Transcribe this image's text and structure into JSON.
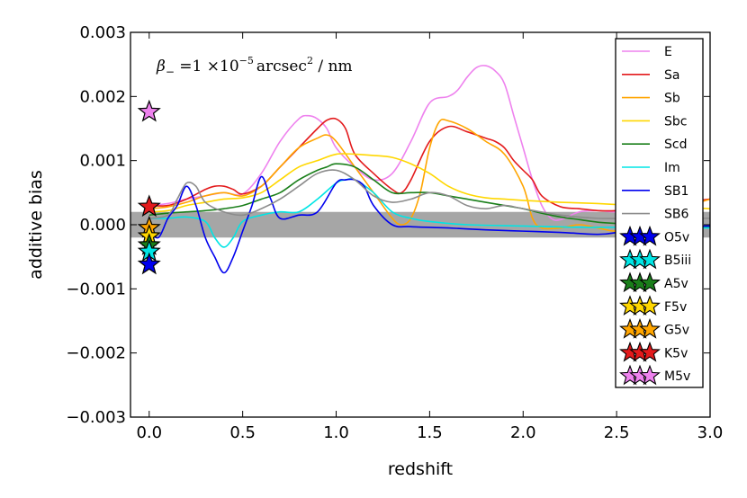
{
  "chart_data": {
    "type": "line",
    "xlabel": "redshift",
    "ylabel": "additive bias",
    "xlim": [
      -0.1,
      3.0
    ],
    "ylim": [
      -0.003,
      0.003
    ],
    "xticks": [
      0.0,
      0.5,
      1.0,
      1.5,
      2.0,
      2.5,
      3.0
    ],
    "xtick_labels": [
      "0.0",
      "0.5",
      "1.0",
      "1.5",
      "2.0",
      "2.5",
      "3.0"
    ],
    "yticks": [
      -0.003,
      -0.002,
      -0.001,
      0.0,
      0.001,
      0.002,
      0.003
    ],
    "ytick_labels": [
      "−0.003",
      "−0.002",
      "−0.001",
      "0.000",
      "0.001",
      "0.002",
      "0.003"
    ],
    "annotation": {
      "beta": "β",
      "sub": "−",
      "eq": " =1 ×10",
      "exp": "−5",
      "unit": "arcsec",
      "unit_exp": "2",
      "per": " / nm"
    },
    "tolerance_band": [
      -0.0002,
      0.0002
    ],
    "band_color": "#a6a6a6",
    "legend_position": "right",
    "series": [
      {
        "name": "E",
        "color": "#ee82ee",
        "points": [
          [
            0.0,
            0.0003
          ],
          [
            0.1,
            0.00033
          ],
          [
            0.2,
            0.0004
          ],
          [
            0.3,
            0.00045
          ],
          [
            0.4,
            0.0005
          ],
          [
            0.5,
            0.00048
          ],
          [
            0.6,
            0.0008
          ],
          [
            0.7,
            0.0013
          ],
          [
            0.8,
            0.00165
          ],
          [
            0.85,
            0.0017
          ],
          [
            0.9,
            0.00165
          ],
          [
            0.95,
            0.0015
          ],
          [
            1.0,
            0.0012
          ],
          [
            1.1,
            0.0009
          ],
          [
            1.2,
            0.0007
          ],
          [
            1.3,
            0.0008
          ],
          [
            1.4,
            0.0013
          ],
          [
            1.5,
            0.0019
          ],
          [
            1.6,
            0.002
          ],
          [
            1.65,
            0.0021
          ],
          [
            1.7,
            0.0023
          ],
          [
            1.75,
            0.00245
          ],
          [
            1.8,
            0.00248
          ],
          [
            1.85,
            0.0024
          ],
          [
            1.9,
            0.0022
          ],
          [
            1.95,
            0.0017
          ],
          [
            2.0,
            0.0012
          ],
          [
            2.05,
            0.0007
          ],
          [
            2.1,
            0.0003
          ],
          [
            2.15,
            0.0001
          ],
          [
            2.2,
            8e-05
          ],
          [
            2.3,
            0.0002
          ],
          [
            2.4,
            0.00022
          ],
          [
            2.5,
            0.0002
          ],
          [
            2.6,
            0.00025
          ],
          [
            2.7,
            0.00028
          ],
          [
            2.8,
            0.0002
          ],
          [
            2.9,
            0.00035
          ],
          [
            3.0,
            0.0004
          ]
        ]
      },
      {
        "name": "Sa",
        "color": "#e31a1c",
        "points": [
          [
            0.0,
            0.0003
          ],
          [
            0.1,
            0.0003
          ],
          [
            0.2,
            0.0004
          ],
          [
            0.3,
            0.00055
          ],
          [
            0.35,
            0.0006
          ],
          [
            0.4,
            0.0006
          ],
          [
            0.45,
            0.00055
          ],
          [
            0.5,
            0.00048
          ],
          [
            0.6,
            0.0006
          ],
          [
            0.7,
            0.0009
          ],
          [
            0.8,
            0.0012
          ],
          [
            0.9,
            0.0015
          ],
          [
            0.95,
            0.00163
          ],
          [
            1.0,
            0.00165
          ],
          [
            1.05,
            0.0015
          ],
          [
            1.1,
            0.0011
          ],
          [
            1.2,
            0.0008
          ],
          [
            1.3,
            0.00055
          ],
          [
            1.35,
            0.0005
          ],
          [
            1.4,
            0.0007
          ],
          [
            1.5,
            0.0013
          ],
          [
            1.6,
            0.00153
          ],
          [
            1.7,
            0.00145
          ],
          [
            1.8,
            0.00135
          ],
          [
            1.85,
            0.0013
          ],
          [
            1.9,
            0.0012
          ],
          [
            1.95,
            0.001
          ],
          [
            2.0,
            0.00085
          ],
          [
            2.05,
            0.0007
          ],
          [
            2.1,
            0.00045
          ],
          [
            2.2,
            0.00028
          ],
          [
            2.3,
            0.00025
          ],
          [
            2.4,
            0.00022
          ],
          [
            2.5,
            0.00022
          ],
          [
            2.6,
            0.00025
          ],
          [
            2.7,
            0.00028
          ],
          [
            2.8,
            0.0003
          ],
          [
            2.9,
            0.00036
          ],
          [
            3.0,
            0.0004
          ]
        ]
      },
      {
        "name": "Sb",
        "color": "#ffa500",
        "points": [
          [
            0.0,
            0.00025
          ],
          [
            0.1,
            0.00028
          ],
          [
            0.2,
            0.00035
          ],
          [
            0.3,
            0.00045
          ],
          [
            0.4,
            0.0005
          ],
          [
            0.5,
            0.00045
          ],
          [
            0.6,
            0.0006
          ],
          [
            0.7,
            0.0009
          ],
          [
            0.8,
            0.0012
          ],
          [
            0.9,
            0.00135
          ],
          [
            0.95,
            0.0014
          ],
          [
            1.0,
            0.0013
          ],
          [
            1.1,
            0.0009
          ],
          [
            1.2,
            0.0005
          ],
          [
            1.3,
            0.0001
          ],
          [
            1.35,
            0.0
          ],
          [
            1.4,
            0.0001
          ],
          [
            1.45,
            0.0005
          ],
          [
            1.5,
            0.0012
          ],
          [
            1.55,
            0.0016
          ],
          [
            1.6,
            0.00162
          ],
          [
            1.7,
            0.0015
          ],
          [
            1.8,
            0.0013
          ],
          [
            1.9,
            0.0011
          ],
          [
            2.0,
            0.0006
          ],
          [
            2.05,
            0.0001
          ],
          [
            2.1,
            -5e-05
          ],
          [
            2.2,
            -5e-05
          ],
          [
            2.3,
            0.0
          ],
          [
            2.4,
            -5e-05
          ],
          [
            2.5,
            -0.0001
          ],
          [
            2.6,
            0.0
          ],
          [
            2.7,
            0.0001
          ],
          [
            2.8,
            0.00015
          ],
          [
            2.9,
            0.0003
          ],
          [
            3.0,
            0.0004
          ]
        ]
      },
      {
        "name": "Sbc",
        "color": "#ffd700",
        "points": [
          [
            0.0,
            0.0002
          ],
          [
            0.1,
            0.00022
          ],
          [
            0.2,
            0.0003
          ],
          [
            0.3,
            0.00035
          ],
          [
            0.4,
            0.0004
          ],
          [
            0.5,
            0.00042
          ],
          [
            0.6,
            0.0005
          ],
          [
            0.7,
            0.0007
          ],
          [
            0.8,
            0.0009
          ],
          [
            0.9,
            0.001
          ],
          [
            1.0,
            0.0011
          ],
          [
            1.1,
            0.0011
          ],
          [
            1.2,
            0.00108
          ],
          [
            1.3,
            0.00105
          ],
          [
            1.4,
            0.00095
          ],
          [
            1.5,
            0.0008
          ],
          [
            1.6,
            0.0006
          ],
          [
            1.7,
            0.00048
          ],
          [
            1.8,
            0.00042
          ],
          [
            1.9,
            0.0004
          ],
          [
            2.0,
            0.00038
          ],
          [
            2.2,
            0.00035
          ],
          [
            2.4,
            0.00033
          ],
          [
            2.6,
            0.0003
          ],
          [
            2.8,
            0.00028
          ],
          [
            3.0,
            0.00025
          ]
        ]
      },
      {
        "name": "Scd",
        "color": "#1a7f1a",
        "points": [
          [
            0.0,
            0.00015
          ],
          [
            0.1,
            0.00018
          ],
          [
            0.2,
            0.0002
          ],
          [
            0.3,
            0.00022
          ],
          [
            0.4,
            0.00025
          ],
          [
            0.5,
            0.0003
          ],
          [
            0.6,
            0.0004
          ],
          [
            0.7,
            0.0005
          ],
          [
            0.8,
            0.0007
          ],
          [
            0.9,
            0.00085
          ],
          [
            0.95,
            0.0009
          ],
          [
            1.0,
            0.00095
          ],
          [
            1.1,
            0.0009
          ],
          [
            1.2,
            0.0007
          ],
          [
            1.3,
            0.0005
          ],
          [
            1.4,
            0.0005
          ],
          [
            1.5,
            0.0005
          ],
          [
            1.6,
            0.00045
          ],
          [
            1.7,
            0.0004
          ],
          [
            1.8,
            0.00035
          ],
          [
            1.9,
            0.0003
          ],
          [
            2.0,
            0.00025
          ],
          [
            2.1,
            0.00018
          ],
          [
            2.2,
            0.00012
          ],
          [
            2.3,
            8e-05
          ],
          [
            2.4,
            4e-05
          ],
          [
            2.5,
            2e-05
          ],
          [
            2.6,
            0.0
          ],
          [
            2.8,
            -2e-05
          ],
          [
            3.0,
            -3e-05
          ]
        ]
      },
      {
        "name": "Im",
        "color": "#00e5e5",
        "points": [
          [
            0.0,
            0.0001
          ],
          [
            0.1,
            0.0001
          ],
          [
            0.2,
            0.00012
          ],
          [
            0.3,
            5e-05
          ],
          [
            0.35,
            -0.0002
          ],
          [
            0.4,
            -0.00035
          ],
          [
            0.45,
            -0.0002
          ],
          [
            0.5,
            5e-05
          ],
          [
            0.6,
            0.00015
          ],
          [
            0.7,
            0.0002
          ],
          [
            0.8,
            0.0002
          ],
          [
            0.9,
            0.0004
          ],
          [
            1.0,
            0.00065
          ],
          [
            1.05,
            0.0007
          ],
          [
            1.1,
            0.0007
          ],
          [
            1.2,
            0.0005
          ],
          [
            1.3,
            0.0002
          ],
          [
            1.4,
            0.0001
          ],
          [
            1.5,
            5e-05
          ],
          [
            1.7,
            0.0
          ],
          [
            2.0,
            -2e-05
          ],
          [
            2.3,
            -4e-05
          ],
          [
            2.6,
            -4e-05
          ],
          [
            3.0,
            -5e-05
          ]
        ]
      },
      {
        "name": "SB1",
        "color": "#0000ee",
        "points": [
          [
            0.0,
            -0.0001
          ],
          [
            0.05,
            -0.0002
          ],
          [
            0.1,
            0.0001
          ],
          [
            0.15,
            0.0003
          ],
          [
            0.2,
            0.0006
          ],
          [
            0.25,
            0.0003
          ],
          [
            0.3,
            -0.0002
          ],
          [
            0.35,
            -0.0005
          ],
          [
            0.4,
            -0.00075
          ],
          [
            0.45,
            -0.0005
          ],
          [
            0.5,
            -0.0001
          ],
          [
            0.55,
            0.0003
          ],
          [
            0.6,
            0.00075
          ],
          [
            0.65,
            0.0004
          ],
          [
            0.7,
            0.0001
          ],
          [
            0.8,
            0.00015
          ],
          [
            0.9,
            0.0002
          ],
          [
            1.0,
            0.00065
          ],
          [
            1.05,
            0.0007
          ],
          [
            1.1,
            0.0007
          ],
          [
            1.15,
            0.0006
          ],
          [
            1.2,
            0.0003
          ],
          [
            1.3,
            0.0
          ],
          [
            1.4,
            -3e-05
          ],
          [
            1.6,
            -5e-05
          ],
          [
            1.8,
            -8e-05
          ],
          [
            2.0,
            -0.0001
          ],
          [
            2.2,
            -0.00012
          ],
          [
            2.4,
            -0.00015
          ],
          [
            2.5,
            -0.00012
          ],
          [
            2.6,
            -5e-05
          ],
          [
            2.8,
            -3e-05
          ],
          [
            3.0,
            -2e-05
          ]
        ]
      },
      {
        "name": "SB6",
        "color": "#8c8c8c",
        "points": [
          [
            0.0,
            0.0001
          ],
          [
            0.1,
            0.00015
          ],
          [
            0.15,
            0.0004
          ],
          [
            0.2,
            0.00065
          ],
          [
            0.25,
            0.0006
          ],
          [
            0.3,
            0.00035
          ],
          [
            0.4,
            0.0002
          ],
          [
            0.5,
            0.00015
          ],
          [
            0.6,
            0.00025
          ],
          [
            0.7,
            0.0004
          ],
          [
            0.8,
            0.0006
          ],
          [
            0.9,
            0.0008
          ],
          [
            1.0,
            0.00085
          ],
          [
            1.1,
            0.0007
          ],
          [
            1.2,
            0.00045
          ],
          [
            1.3,
            0.00035
          ],
          [
            1.4,
            0.0004
          ],
          [
            1.5,
            0.0005
          ],
          [
            1.6,
            0.00045
          ],
          [
            1.7,
            0.0003
          ],
          [
            1.8,
            0.00025
          ],
          [
            1.9,
            0.0003
          ],
          [
            2.0,
            0.00025
          ],
          [
            2.2,
            0.00015
          ],
          [
            2.4,
            0.0001
          ],
          [
            2.6,
            0.0001
          ],
          [
            2.8,
            0.0001
          ],
          [
            3.0,
            0.0001
          ]
        ]
      }
    ],
    "stars": [
      {
        "name": "O5v",
        "fill": "#0000ee",
        "value": -0.00062
      },
      {
        "name": "B5iii",
        "fill": "#00e5e5",
        "value": -0.00042
      },
      {
        "name": "A5v",
        "fill": "#1a7f1a",
        "value": -0.00032
      },
      {
        "name": "F5v",
        "fill": "#ffd700",
        "value": -0.00018
      },
      {
        "name": "G5v",
        "fill": "#ffa500",
        "value": -5e-05
      },
      {
        "name": "K5v",
        "fill": "#e31a1c",
        "value": 0.00028
      },
      {
        "name": "M5v",
        "fill": "#ee82ee",
        "value": 0.00176
      }
    ],
    "star_x": 0.0
  }
}
